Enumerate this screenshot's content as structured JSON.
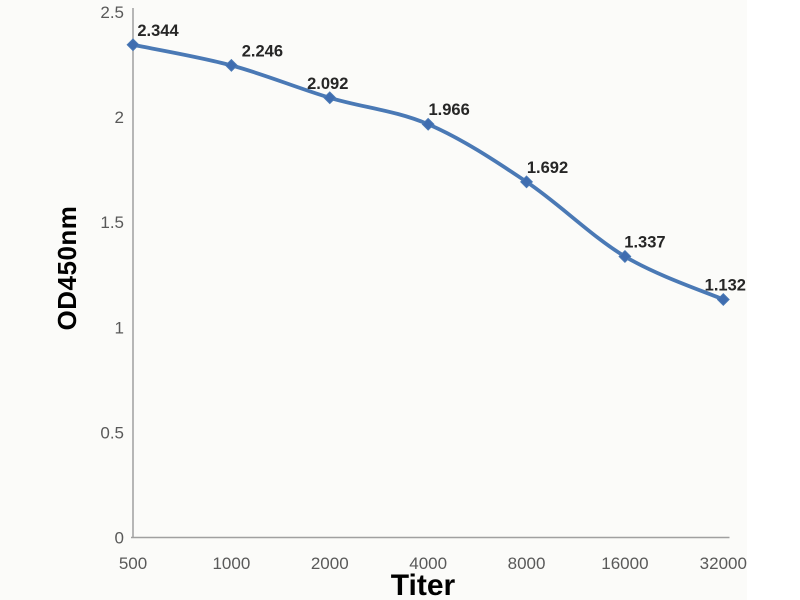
{
  "page": {
    "background": "#ffffff",
    "photo_background": "#fbfbf9"
  },
  "chart_data": {
    "type": "line",
    "title": "",
    "xlabel": "Titer",
    "ylabel": "OD450nm",
    "categories": [
      "500",
      "1000",
      "2000",
      "4000",
      "8000",
      "16000",
      "32000"
    ],
    "series": [
      {
        "name": "OD450nm",
        "values": [
          2.344,
          2.246,
          2.092,
          1.966,
          1.692,
          1.337,
          1.132
        ],
        "data_labels": [
          "2.344",
          "2.246",
          "2.092",
          "1.966",
          "1.692",
          "1.337",
          "1.132"
        ]
      }
    ],
    "y_ticks": [
      "0",
      "0.5",
      "1",
      "1.5",
      "2",
      "2.5"
    ],
    "ylim": [
      0,
      2.5
    ],
    "grid": false,
    "legend": "none",
    "marker": "diamond",
    "smoothed": true,
    "colors": {
      "line": "#4a79b5",
      "marker": "#3f6db0",
      "axis": "#a0a0a0",
      "tick_text": "#595959",
      "data_label_text": "#262626",
      "axis_title_text": "#000000"
    }
  }
}
